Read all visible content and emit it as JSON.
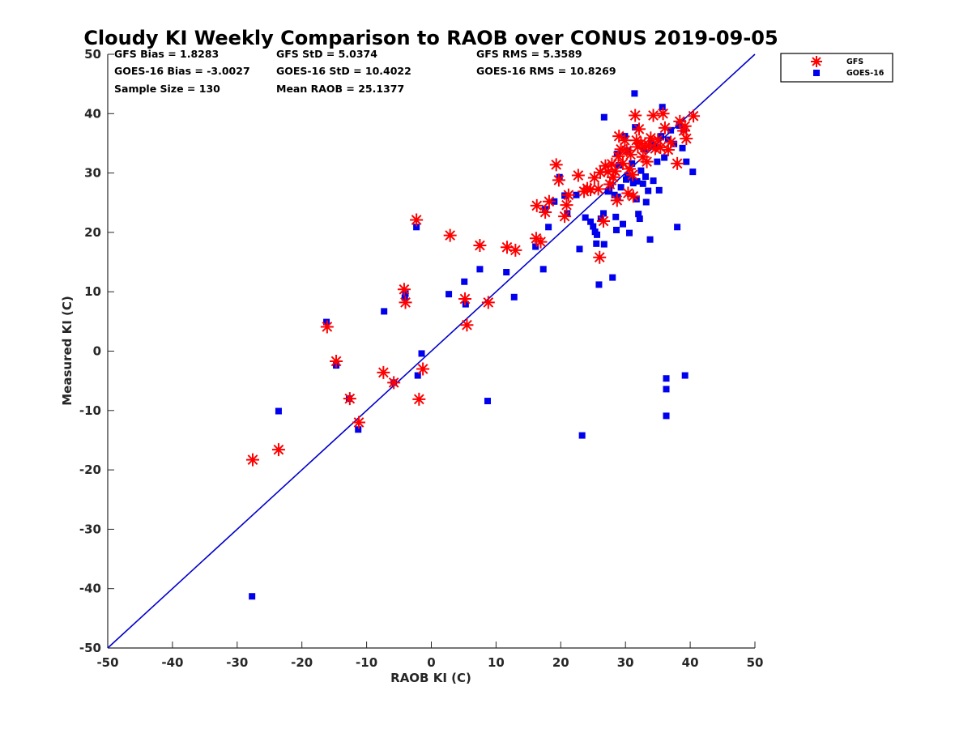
{
  "chart_data": {
    "type": "scatter",
    "title": "Cloudy KI Weekly Comparison to RAOB over CONUS 2019-09-05",
    "xlabel": "RAOB KI (C)",
    "ylabel": "Measured KI (C)",
    "xlim": [
      -50,
      50
    ],
    "ylim": [
      -50,
      50
    ],
    "xticks": [
      "-50",
      "-40",
      "-30",
      "-20",
      "-10",
      "0",
      "10",
      "20",
      "30",
      "40",
      "50"
    ],
    "yticks": [
      "50",
      "40",
      "30",
      "20",
      "10",
      "0",
      "-10",
      "-20",
      "-30",
      "-40",
      "-50"
    ],
    "grid": false,
    "legend_position": "top-right outside",
    "reference_line": {
      "name": "1:1 line",
      "color": "#0000cc",
      "points": [
        [
          -50,
          -50
        ],
        [
          50,
          50
        ]
      ]
    },
    "stats": [
      {
        "label": "GFS Bias = 1.8283"
      },
      {
        "label": "GFS StD = 5.0374"
      },
      {
        "label": "GFS RMS = 5.3589"
      },
      {
        "label": "GOES-16 Bias = -3.0027"
      },
      {
        "label": "GOES-16 StD = 10.4022"
      },
      {
        "label": "GOES-16 RMS = 10.8269"
      },
      {
        "label": "Sample Size = 130"
      },
      {
        "label": "Mean RAOB = 25.1377"
      }
    ],
    "series": [
      {
        "name": "GFS",
        "marker": "asterisk",
        "color": "#ff0000",
        "points": [
          [
            -27.6,
            -18.3
          ],
          [
            -23.6,
            -16.6
          ],
          [
            -16.1,
            4.1
          ],
          [
            -14.7,
            -1.7
          ],
          [
            -12.6,
            -8.0
          ],
          [
            -11.2,
            -12.0
          ],
          [
            -7.4,
            -3.6
          ],
          [
            -5.8,
            -5.3
          ],
          [
            -4.2,
            10.4
          ],
          [
            -4.0,
            8.2
          ],
          [
            -2.3,
            22.1
          ],
          [
            -1.9,
            -8.1
          ],
          [
            -1.3,
            -3.0
          ],
          [
            2.9,
            19.5
          ],
          [
            5.2,
            8.8
          ],
          [
            5.5,
            4.4
          ],
          [
            7.5,
            17.8
          ],
          [
            8.8,
            8.2
          ],
          [
            11.7,
            17.5
          ],
          [
            13.0,
            17.0
          ],
          [
            16.2,
            19.0
          ],
          [
            16.3,
            24.5
          ],
          [
            16.9,
            18.4
          ],
          [
            17.6,
            23.4
          ],
          [
            18.2,
            25.2
          ],
          [
            19.3,
            31.4
          ],
          [
            19.7,
            28.8
          ],
          [
            20.6,
            22.7
          ],
          [
            20.9,
            24.6
          ],
          [
            21.2,
            26.3
          ],
          [
            22.7,
            29.6
          ],
          [
            23.6,
            26.9
          ],
          [
            24.1,
            27.4
          ],
          [
            24.6,
            27.2
          ],
          [
            25.2,
            29.2
          ],
          [
            25.8,
            27.3
          ],
          [
            26.0,
            15.8
          ],
          [
            26.1,
            30.1
          ],
          [
            26.6,
            21.9
          ],
          [
            26.9,
            31.2
          ],
          [
            27.3,
            30.2
          ],
          [
            27.6,
            28.1
          ],
          [
            27.9,
            31.5
          ],
          [
            28.1,
            29.3
          ],
          [
            28.4,
            30.3
          ],
          [
            28.7,
            25.4
          ],
          [
            28.9,
            32.8
          ],
          [
            29.0,
            36.2
          ],
          [
            29.3,
            34.0
          ],
          [
            29.6,
            31.6
          ],
          [
            29.9,
            35.5
          ],
          [
            30.2,
            33.8
          ],
          [
            30.6,
            30.7
          ],
          [
            30.8,
            33.1
          ],
          [
            31.1,
            29.7
          ],
          [
            31.5,
            39.7
          ],
          [
            31.7,
            35.5
          ],
          [
            31.9,
            34.4
          ],
          [
            32.1,
            37.4
          ],
          [
            32.4,
            35.0
          ],
          [
            32.7,
            32.7
          ],
          [
            33.0,
            34.3
          ],
          [
            33.3,
            31.9
          ],
          [
            33.6,
            34.7
          ],
          [
            33.9,
            35.9
          ],
          [
            34.3,
            39.7
          ],
          [
            34.6,
            34.1
          ],
          [
            35.0,
            35.6
          ],
          [
            35.4,
            34.3
          ],
          [
            35.8,
            40.0
          ],
          [
            36.1,
            37.6
          ],
          [
            36.6,
            33.9
          ],
          [
            37.0,
            35.2
          ],
          [
            38.0,
            31.6
          ],
          [
            38.4,
            38.7
          ],
          [
            39.0,
            37.1
          ],
          [
            39.2,
            37.9
          ],
          [
            39.4,
            35.8
          ],
          [
            40.5,
            39.6
          ],
          [
            30.4,
            26.6
          ],
          [
            31.2,
            26.1
          ]
        ]
      },
      {
        "name": "GOES-16",
        "marker": "square",
        "color": "#0000ee",
        "points": [
          [
            -27.7,
            -41.3
          ],
          [
            -23.6,
            -10.1
          ],
          [
            -16.2,
            4.9
          ],
          [
            -14.7,
            -2.4
          ],
          [
            -12.7,
            -8.0
          ],
          [
            -11.3,
            -13.2
          ],
          [
            -5.8,
            -5.3
          ],
          [
            -7.3,
            6.7
          ],
          [
            -4.1,
            9.0
          ],
          [
            -4.0,
            9.7
          ],
          [
            -2.3,
            20.9
          ],
          [
            -2.1,
            -4.1
          ],
          [
            -1.5,
            -0.4
          ],
          [
            2.7,
            9.6
          ],
          [
            5.1,
            11.7
          ],
          [
            5.3,
            7.9
          ],
          [
            7.5,
            13.8
          ],
          [
            8.7,
            -8.4
          ],
          [
            11.6,
            13.3
          ],
          [
            12.8,
            9.1
          ],
          [
            16.1,
            17.6
          ],
          [
            17.3,
            13.8
          ],
          [
            17.6,
            23.9
          ],
          [
            18.1,
            20.9
          ],
          [
            19.0,
            25.2
          ],
          [
            19.8,
            29.3
          ],
          [
            20.6,
            26.2
          ],
          [
            21.0,
            23.2
          ],
          [
            22.4,
            26.3
          ],
          [
            22.9,
            17.2
          ],
          [
            23.3,
            -14.2
          ],
          [
            23.8,
            22.5
          ],
          [
            24.6,
            21.8
          ],
          [
            25.0,
            21.0
          ],
          [
            25.3,
            20.1
          ],
          [
            25.5,
            18.1
          ],
          [
            25.6,
            19.6
          ],
          [
            25.9,
            11.2
          ],
          [
            26.2,
            22.3
          ],
          [
            26.6,
            23.2
          ],
          [
            26.7,
            18.0
          ],
          [
            26.7,
            39.4
          ],
          [
            27.3,
            26.9
          ],
          [
            27.7,
            28.0
          ],
          [
            28.0,
            12.4
          ],
          [
            28.3,
            26.3
          ],
          [
            28.5,
            22.6
          ],
          [
            28.6,
            20.4
          ],
          [
            28.7,
            33.2
          ],
          [
            29.0,
            31.3
          ],
          [
            29.3,
            27.6
          ],
          [
            29.6,
            21.4
          ],
          [
            29.9,
            36.2
          ],
          [
            30.1,
            28.9
          ],
          [
            30.4,
            33.8
          ],
          [
            30.6,
            19.9
          ],
          [
            30.9,
            29.2
          ],
          [
            31.0,
            31.6
          ],
          [
            31.2,
            28.3
          ],
          [
            31.4,
            43.4
          ],
          [
            31.5,
            37.7
          ],
          [
            31.8,
            28.6
          ],
          [
            32.0,
            23.1
          ],
          [
            32.2,
            22.3
          ],
          [
            32.4,
            30.4
          ],
          [
            32.7,
            28.2
          ],
          [
            32.9,
            34.0
          ],
          [
            33.2,
            25.1
          ],
          [
            33.5,
            27.0
          ],
          [
            33.8,
            18.8
          ],
          [
            34.0,
            35.1
          ],
          [
            34.3,
            28.7
          ],
          [
            34.5,
            34.6
          ],
          [
            34.9,
            31.9
          ],
          [
            35.2,
            27.1
          ],
          [
            35.5,
            36.2
          ],
          [
            35.7,
            41.1
          ],
          [
            36.0,
            32.6
          ],
          [
            36.3,
            -4.6
          ],
          [
            36.3,
            -6.4
          ],
          [
            36.3,
            -10.9
          ],
          [
            36.6,
            35.6
          ],
          [
            37.0,
            37.2
          ],
          [
            37.5,
            34.9
          ],
          [
            38.0,
            20.9
          ],
          [
            38.3,
            38.0
          ],
          [
            38.8,
            34.2
          ],
          [
            39.0,
            37.3
          ],
          [
            39.2,
            -4.1
          ],
          [
            39.4,
            31.9
          ],
          [
            40.4,
            30.2
          ],
          [
            27.5,
            27.1
          ],
          [
            28.8,
            26.0
          ],
          [
            30.3,
            29.6
          ],
          [
            31.7,
            25.6
          ],
          [
            33.1,
            29.4
          ]
        ]
      }
    ]
  }
}
